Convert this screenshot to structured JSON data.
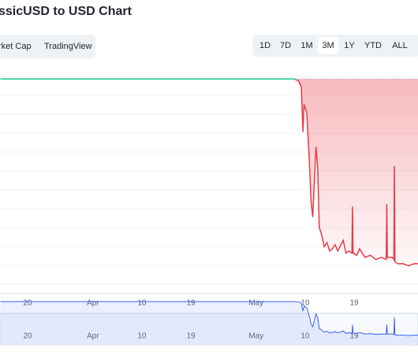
{
  "header": {
    "title": "ssicUSD to USD Chart"
  },
  "tabs": [
    "rket Cap",
    "TradingView"
  ],
  "ranges": [
    "1D",
    "7D",
    "1M",
    "3M",
    "1Y",
    "YTD",
    "ALL"
  ],
  "selected_range": "3M",
  "chart_data": {
    "type": "line",
    "x": [
      74,
      80,
      86,
      92,
      98,
      104,
      110,
      116,
      122,
      126,
      128,
      128.8,
      129.3,
      129.6,
      129.8,
      130.3,
      130.8,
      131.1,
      131.4,
      131.7,
      132,
      132.3,
      132.6,
      133,
      133.5,
      134,
      134.5,
      135,
      135.5,
      136,
      137,
      137.5,
      138,
      138.6,
      138.7,
      138.8,
      139.5,
      140,
      141,
      142,
      143,
      144,
      144.9,
      145,
      145.1,
      146,
      146.3,
      146.4,
      146.5,
      147,
      148,
      149,
      150,
      151
    ],
    "series": [
      {
        "color": "#ea3943",
        "values": [
          1,
          1,
          1,
          1,
          1,
          1,
          1,
          1,
          1,
          1,
          1,
          0.99,
          0.96,
          0.75,
          0.88,
          0.84,
          0.6,
          0.42,
          0.35,
          0.52,
          0.68,
          0.58,
          0.3,
          0.27,
          0.21,
          0.23,
          0.19,
          0.2,
          0.22,
          0.19,
          0.24,
          0.18,
          0.19,
          0.18,
          0.4,
          0.18,
          0.17,
          0.2,
          0.16,
          0.17,
          0.15,
          0.16,
          0.15,
          0.41,
          0.16,
          0.16,
          0.15,
          0.59,
          0.14,
          0.13,
          0.13,
          0.12,
          0.13,
          0.13
        ]
      }
    ],
    "up_color": "#16c784",
    "baseline": 1,
    "navigator_color": "#3861fb",
    "xlim": [
      74,
      151
    ],
    "xticks": [
      {
        "value": 79,
        "label": "20"
      },
      {
        "value": 91,
        "label": "Apr"
      },
      {
        "value": 100,
        "label": "10"
      },
      {
        "value": 109,
        "label": "19"
      },
      {
        "value": 121,
        "label": "May"
      },
      {
        "value": 130,
        "label": "10"
      },
      {
        "value": 139,
        "label": "19"
      }
    ],
    "ylim": [
      0,
      1.06
    ]
  }
}
